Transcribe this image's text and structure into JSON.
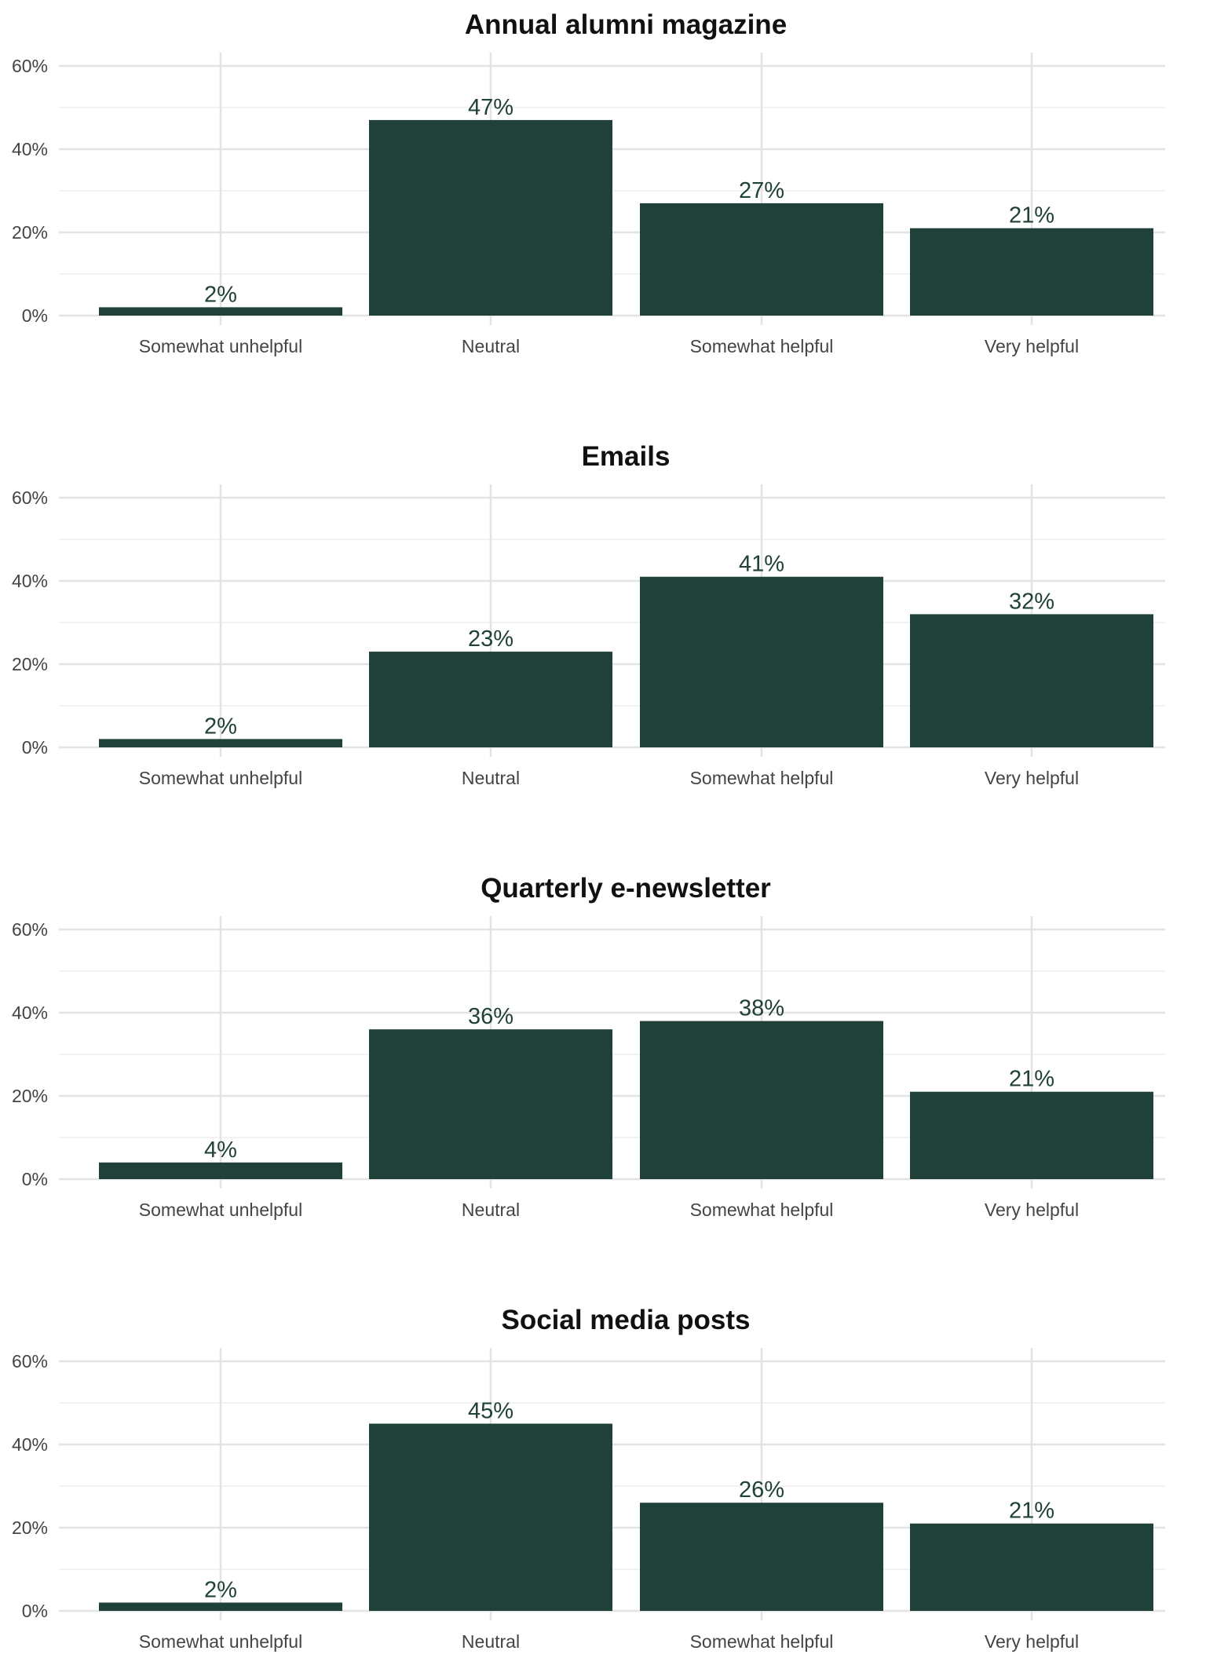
{
  "bar_color": "#20403a",
  "label_color": "#20403a",
  "chart_data": [
    {
      "type": "bar",
      "title": "Annual alumni magazine",
      "categories": [
        "Somewhat unhelpful",
        "Neutral",
        "Somewhat helpful",
        "Very helpful"
      ],
      "values": [
        2,
        47,
        27,
        21
      ],
      "value_labels": [
        "2%",
        "47%",
        "27%",
        "21%"
      ],
      "ylim": [
        0,
        60
      ],
      "yticks": [
        "0%",
        "20%",
        "40%",
        "60%"
      ],
      "xlabel": "",
      "ylabel": "",
      "grid": true
    },
    {
      "type": "bar",
      "title": "Emails",
      "categories": [
        "Somewhat unhelpful",
        "Neutral",
        "Somewhat helpful",
        "Very helpful"
      ],
      "values": [
        2,
        23,
        41,
        32
      ],
      "value_labels": [
        "2%",
        "23%",
        "41%",
        "32%"
      ],
      "ylim": [
        0,
        60
      ],
      "yticks": [
        "0%",
        "20%",
        "40%",
        "60%"
      ],
      "xlabel": "",
      "ylabel": "",
      "grid": true
    },
    {
      "type": "bar",
      "title": "Quarterly e-newsletter",
      "categories": [
        "Somewhat unhelpful",
        "Neutral",
        "Somewhat helpful",
        "Very helpful"
      ],
      "values": [
        4,
        36,
        38,
        21
      ],
      "value_labels": [
        "4%",
        "36%",
        "38%",
        "21%"
      ],
      "ylim": [
        0,
        60
      ],
      "yticks": [
        "0%",
        "20%",
        "40%",
        "60%"
      ],
      "xlabel": "",
      "ylabel": "",
      "grid": true
    },
    {
      "type": "bar",
      "title": "Social media posts",
      "categories": [
        "Somewhat unhelpful",
        "Neutral",
        "Somewhat helpful",
        "Very helpful"
      ],
      "values": [
        2,
        45,
        26,
        21
      ],
      "value_labels": [
        "2%",
        "45%",
        "26%",
        "21%"
      ],
      "ylim": [
        0,
        60
      ],
      "yticks": [
        "0%",
        "20%",
        "40%",
        "60%"
      ],
      "xlabel": "",
      "ylabel": "",
      "grid": true
    }
  ]
}
